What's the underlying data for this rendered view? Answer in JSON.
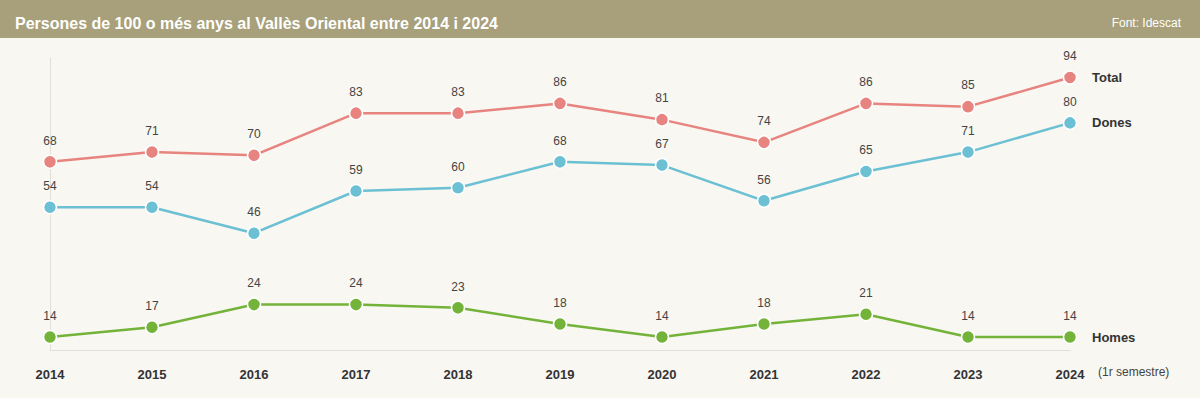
{
  "chart_data": {
    "type": "line",
    "title": "Persones de 100 o més anys al Vallès Oriental entre 2014 i 2024",
    "source": "Font: Idescat",
    "annotation": "(1r semestre)",
    "categories": [
      "2014",
      "2015",
      "2016",
      "2017",
      "2018",
      "2019",
      "2020",
      "2021",
      "2022",
      "2023",
      "2024"
    ],
    "series": [
      {
        "name": "Total",
        "color": "#e8847f",
        "values": [
          68,
          71,
          70,
          83,
          83,
          86,
          81,
          74,
          86,
          85,
          94
        ]
      },
      {
        "name": "Dones",
        "color": "#6cc0d4",
        "values": [
          54,
          54,
          46,
          59,
          60,
          68,
          67,
          56,
          65,
          71,
          80
        ]
      },
      {
        "name": "Homes",
        "color": "#74b33a",
        "values": [
          14,
          17,
          24,
          24,
          23,
          18,
          14,
          18,
          21,
          14,
          14
        ]
      }
    ],
    "ylim": [
      10,
      100
    ],
    "yticks": [],
    "tick_labels": "x",
    "data_labels": true,
    "marker": "circle",
    "grid": false
  }
}
